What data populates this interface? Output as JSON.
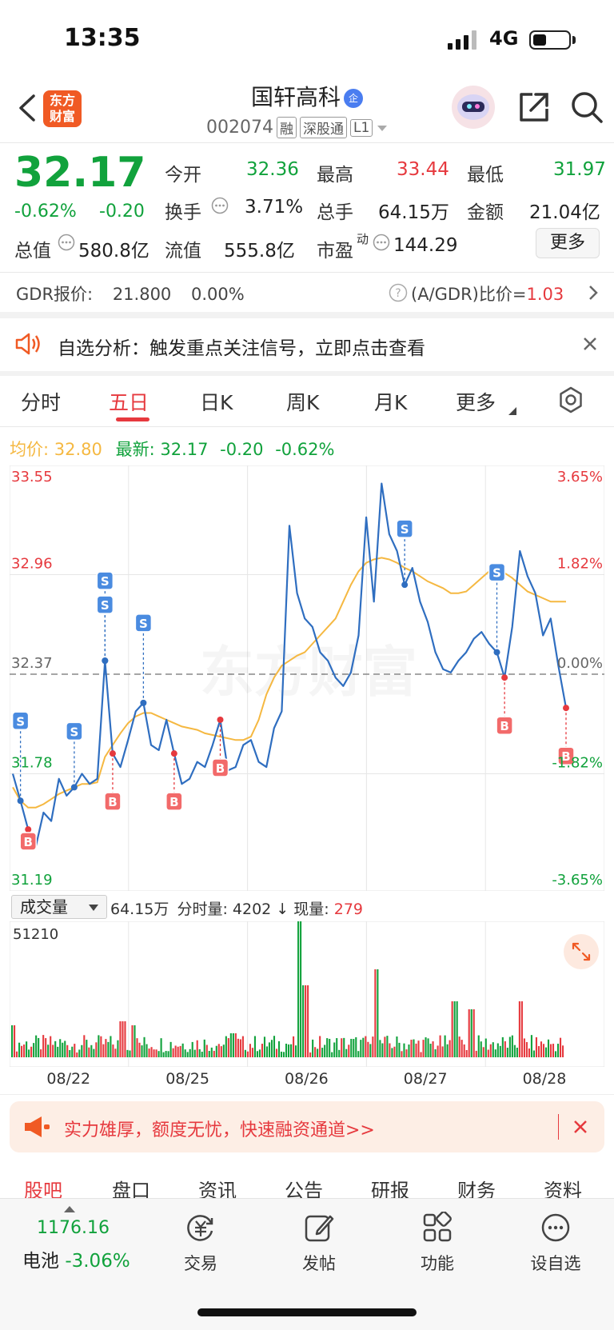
{
  "status_bar": {
    "time": "13:35",
    "network": "4G"
  },
  "header": {
    "title": "国轩高科",
    "badge": "企",
    "code": "002074",
    "tags": [
      "融",
      "深股通",
      "L1"
    ],
    "logo_text_1": "东方",
    "logo_text_2": "财富"
  },
  "quote": {
    "price": "32.17",
    "change_pct": "-0.62%",
    "change": "-0.20",
    "fields": {
      "open_label": "今开",
      "open": "32.36",
      "high_label": "最高",
      "high": "33.44",
      "low_label": "最低",
      "low": "31.97",
      "turnover_label": "换手",
      "turnover": "3.71%",
      "volume_label": "总手",
      "volume": "64.15万",
      "amount_label": "金额",
      "amount": "21.04亿",
      "mktcap_label": "总值",
      "mktcap": "580.8亿",
      "float_label": "流值",
      "float": "555.8亿",
      "pe_label": "市盈",
      "pe_sup": "动",
      "pe": "144.29"
    },
    "more_label": "更多"
  },
  "gdr": {
    "label": "GDR报价:",
    "price": "21.800",
    "pct": "0.00%",
    "ratio_label": "(A/GDR)比价=",
    "ratio": "1.03"
  },
  "notice": {
    "text": "自选分析：触发重点关注信号，立即点击查看"
  },
  "chart_tabs": [
    "分时",
    "五日",
    "日K",
    "周K",
    "月K",
    "更多"
  ],
  "active_chart_tab": "五日",
  "avg_info": {
    "avg_label": "均价:",
    "avg": "32.80",
    "latest_label": "最新:",
    "latest": "32.17",
    "change": "-0.20",
    "pct": "-0.62%"
  },
  "volume_info": {
    "select_label": "成交量",
    "total": "64.15万",
    "minute_label": "分时量:",
    "minute": "4202",
    "current_label": "现量:",
    "current": "279"
  },
  "colors": {
    "up": "#e6393e",
    "down": "#11a23c",
    "price_line": "#2f6ec0",
    "avg_line": "#f5b841",
    "accent": "#f05a24"
  },
  "chart_data": {
    "type": "line",
    "days": [
      "08/22",
      "08/25",
      "08/26",
      "08/27",
      "08/28"
    ],
    "y_left_ticks": [
      "33.55",
      "32.96",
      "32.37",
      "31.78",
      "31.19"
    ],
    "y_right_ticks": [
      "3.65%",
      "1.82%",
      "0.00%",
      "-1.82%",
      "-3.65%"
    ],
    "ylim": [
      31.19,
      33.55
    ],
    "prev_close": 32.37,
    "volume_max_label": "51210",
    "series": [
      {
        "values": [
          31.78,
          31.62,
          31.45,
          31.35,
          31.55,
          31.5,
          31.75,
          31.65,
          31.7,
          31.78,
          31.72,
          31.75,
          32.45,
          31.9,
          31.82,
          31.98,
          32.15,
          32.2,
          31.95,
          31.92,
          32.1,
          31.9,
          31.72,
          31.75,
          31.85,
          31.82,
          31.95,
          32.1,
          31.8,
          31.82,
          31.95,
          31.98,
          31.85,
          31.82,
          32.05,
          32.15,
          33.25,
          32.85,
          32.7,
          32.65,
          32.5,
          32.45,
          32.35,
          32.3,
          32.38,
          32.6,
          33.3,
          32.8,
          33.5,
          33.2,
          33.1,
          32.9,
          33.0,
          32.8,
          32.68,
          32.5,
          32.4,
          32.38,
          32.45,
          32.5,
          32.58,
          32.62,
          32.55,
          32.5,
          32.35,
          32.65,
          33.1,
          32.95,
          32.85,
          32.6,
          32.7,
          32.42,
          32.17
        ]
      },
      {
        "values": [
          31.7,
          31.62,
          31.58,
          31.58,
          31.6,
          31.63,
          31.66,
          31.68,
          31.7,
          31.72,
          31.72,
          31.73,
          31.88,
          31.95,
          32.02,
          32.08,
          32.12,
          32.14,
          32.14,
          32.12,
          32.1,
          32.08,
          32.06,
          32.05,
          32.04,
          32.02,
          32.01,
          32.0,
          31.99,
          31.98,
          31.98,
          32.0,
          32.1,
          32.25,
          32.35,
          32.42,
          32.45,
          32.48,
          32.5,
          32.55,
          32.6,
          32.65,
          32.7,
          32.8,
          32.9,
          32.98,
          33.03,
          33.05,
          33.06,
          33.05,
          33.03,
          33.0,
          32.98,
          32.95,
          32.92,
          32.9,
          32.88,
          32.85,
          32.85,
          32.86,
          32.9,
          32.94,
          32.98,
          32.98,
          32.97,
          32.94,
          32.9,
          32.86,
          32.84,
          32.82,
          32.8,
          32.8,
          32.8
        ]
      }
    ],
    "markers": [
      "S",
      "S",
      "S",
      "S",
      "S",
      "S",
      "S",
      "B",
      "B",
      "B",
      "B",
      "B",
      "B"
    ]
  },
  "promo": {
    "text": "实力雄厚，额度无忧，快速融资通道>>"
  },
  "bottom_tabs": [
    "股吧",
    "盘口",
    "资讯",
    "公告",
    "研报",
    "财务",
    "资料"
  ],
  "dock": {
    "index_value": "1176.16",
    "index_name": "电池",
    "index_pct": "-3.06%",
    "items": [
      "交易",
      "发帖",
      "功能",
      "设自选"
    ]
  }
}
